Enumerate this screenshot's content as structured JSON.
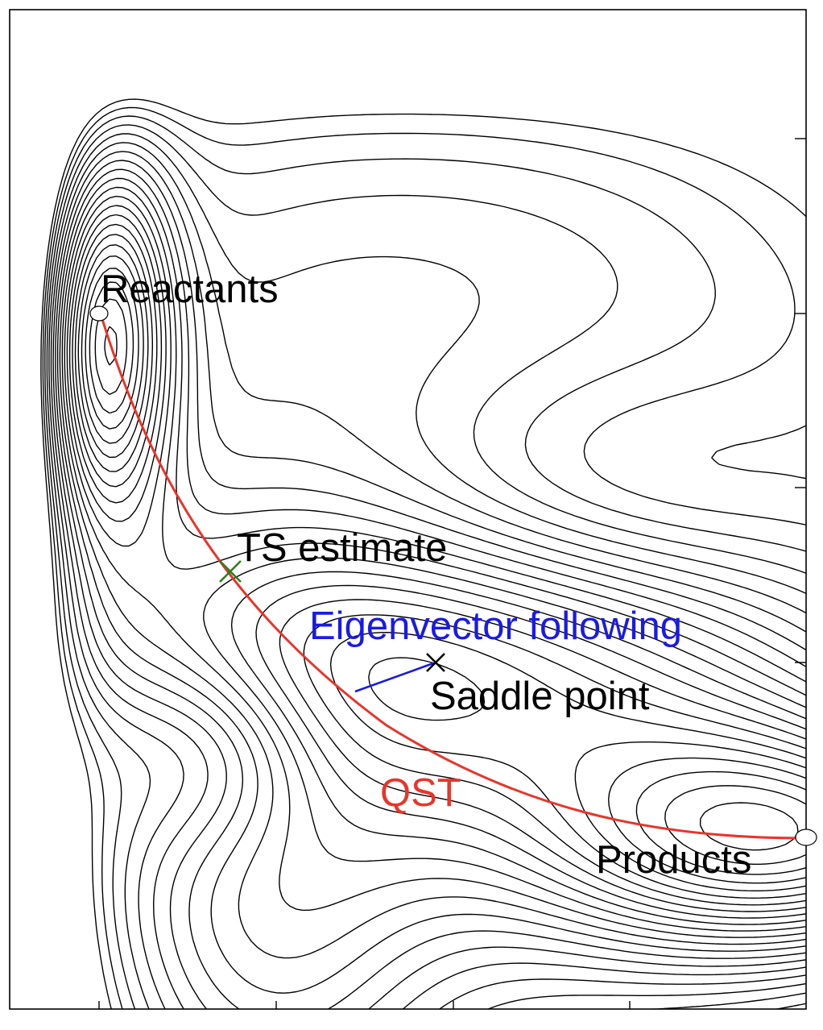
{
  "labels": {
    "reactants": "Reactants",
    "ts_estimate": "TS estimate",
    "eigenvector_following": "Eigenvector following",
    "saddle_point": "Saddle point",
    "qst": "QST",
    "products": "Products"
  },
  "colors": {
    "contour": "#000000",
    "qst_path": "#e8352b",
    "eigenvector_path": "#1a1ae6",
    "ts_marker": "#2e7d1f",
    "saddle_marker": "#000000",
    "label_default": "#000000",
    "label_eigenvector": "#1a1ae6",
    "label_qst": "#e8352b",
    "background": "#ffffff",
    "frame": "#000000"
  }
}
